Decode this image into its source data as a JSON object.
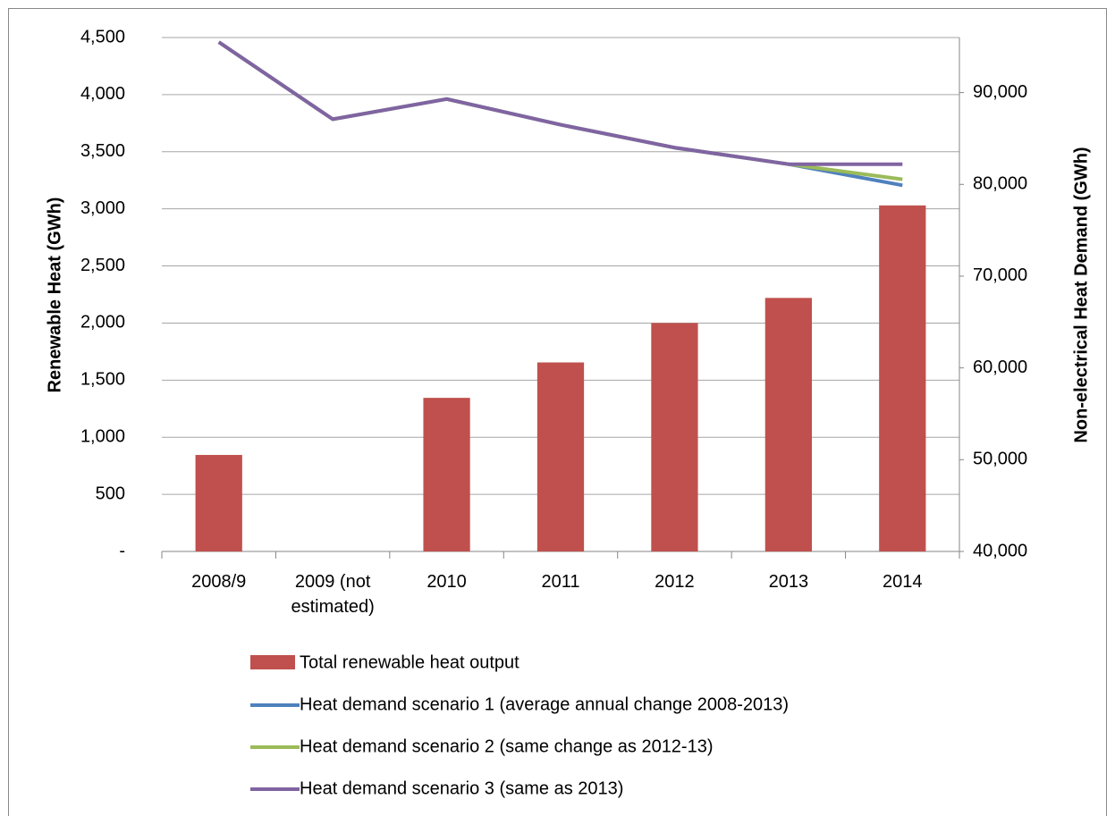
{
  "chart_data": {
    "type": "bar_line",
    "y_label": "Renewable Heat (GWh)",
    "y2_label": "Non-electrical Heat Demand (GWh)",
    "categories": [
      "2008/9",
      "2009 (not estimated)",
      "2010",
      "2011",
      "2012",
      "2013",
      "2014"
    ],
    "bar_series": {
      "name": "Total renewable heat output",
      "color": "#c0504d",
      "values": [
        845,
        null,
        1345,
        1655,
        2000,
        2220,
        3030
      ]
    },
    "series": [
      {
        "name": "Heat demand scenario 1 (average annual change 2008-2013)",
        "color": "#4f81bd",
        "axis": "y2",
        "values": [
          95500,
          87100,
          89300,
          86500,
          84000,
          82200,
          79900
        ]
      },
      {
        "name": "Heat demand scenario 2 (same change as 2012-13)",
        "color": "#9bbb59",
        "axis": "y2",
        "values": [
          95500,
          87100,
          89300,
          86500,
          84000,
          82200,
          80550
        ]
      },
      {
        "name": "Heat demand scenario 3 (same as 2013)",
        "color": "#8064a2",
        "axis": "y2",
        "values": [
          95500,
          87100,
          89300,
          86500,
          84000,
          82200,
          82200
        ]
      }
    ],
    "ylim": [
      0,
      4500
    ],
    "yticks": [
      {
        "value": 0,
        "label": "-"
      },
      500,
      {
        "value": 1000,
        "label": "1,000"
      },
      {
        "value": 1500,
        "label": "1,500"
      },
      {
        "value": 2000,
        "label": "2,000"
      },
      {
        "value": 2500,
        "label": "2,500"
      },
      {
        "value": 3000,
        "label": "3,000"
      },
      {
        "value": 3500,
        "label": "3,500"
      },
      {
        "value": 4000,
        "label": "4,000"
      },
      {
        "value": 4500,
        "label": "4,500"
      }
    ],
    "y2lim": [
      40000,
      96000
    ],
    "y2ticks": [
      {
        "value": 40000,
        "label": "40,000"
      },
      {
        "value": 50000,
        "label": "50,000"
      },
      {
        "value": 60000,
        "label": "60,000"
      },
      {
        "value": 70000,
        "label": "70,000"
      },
      {
        "value": 80000,
        "label": "80,000"
      },
      {
        "value": 90000,
        "label": "90,000"
      }
    ],
    "grid": true,
    "legend": "bottom"
  }
}
